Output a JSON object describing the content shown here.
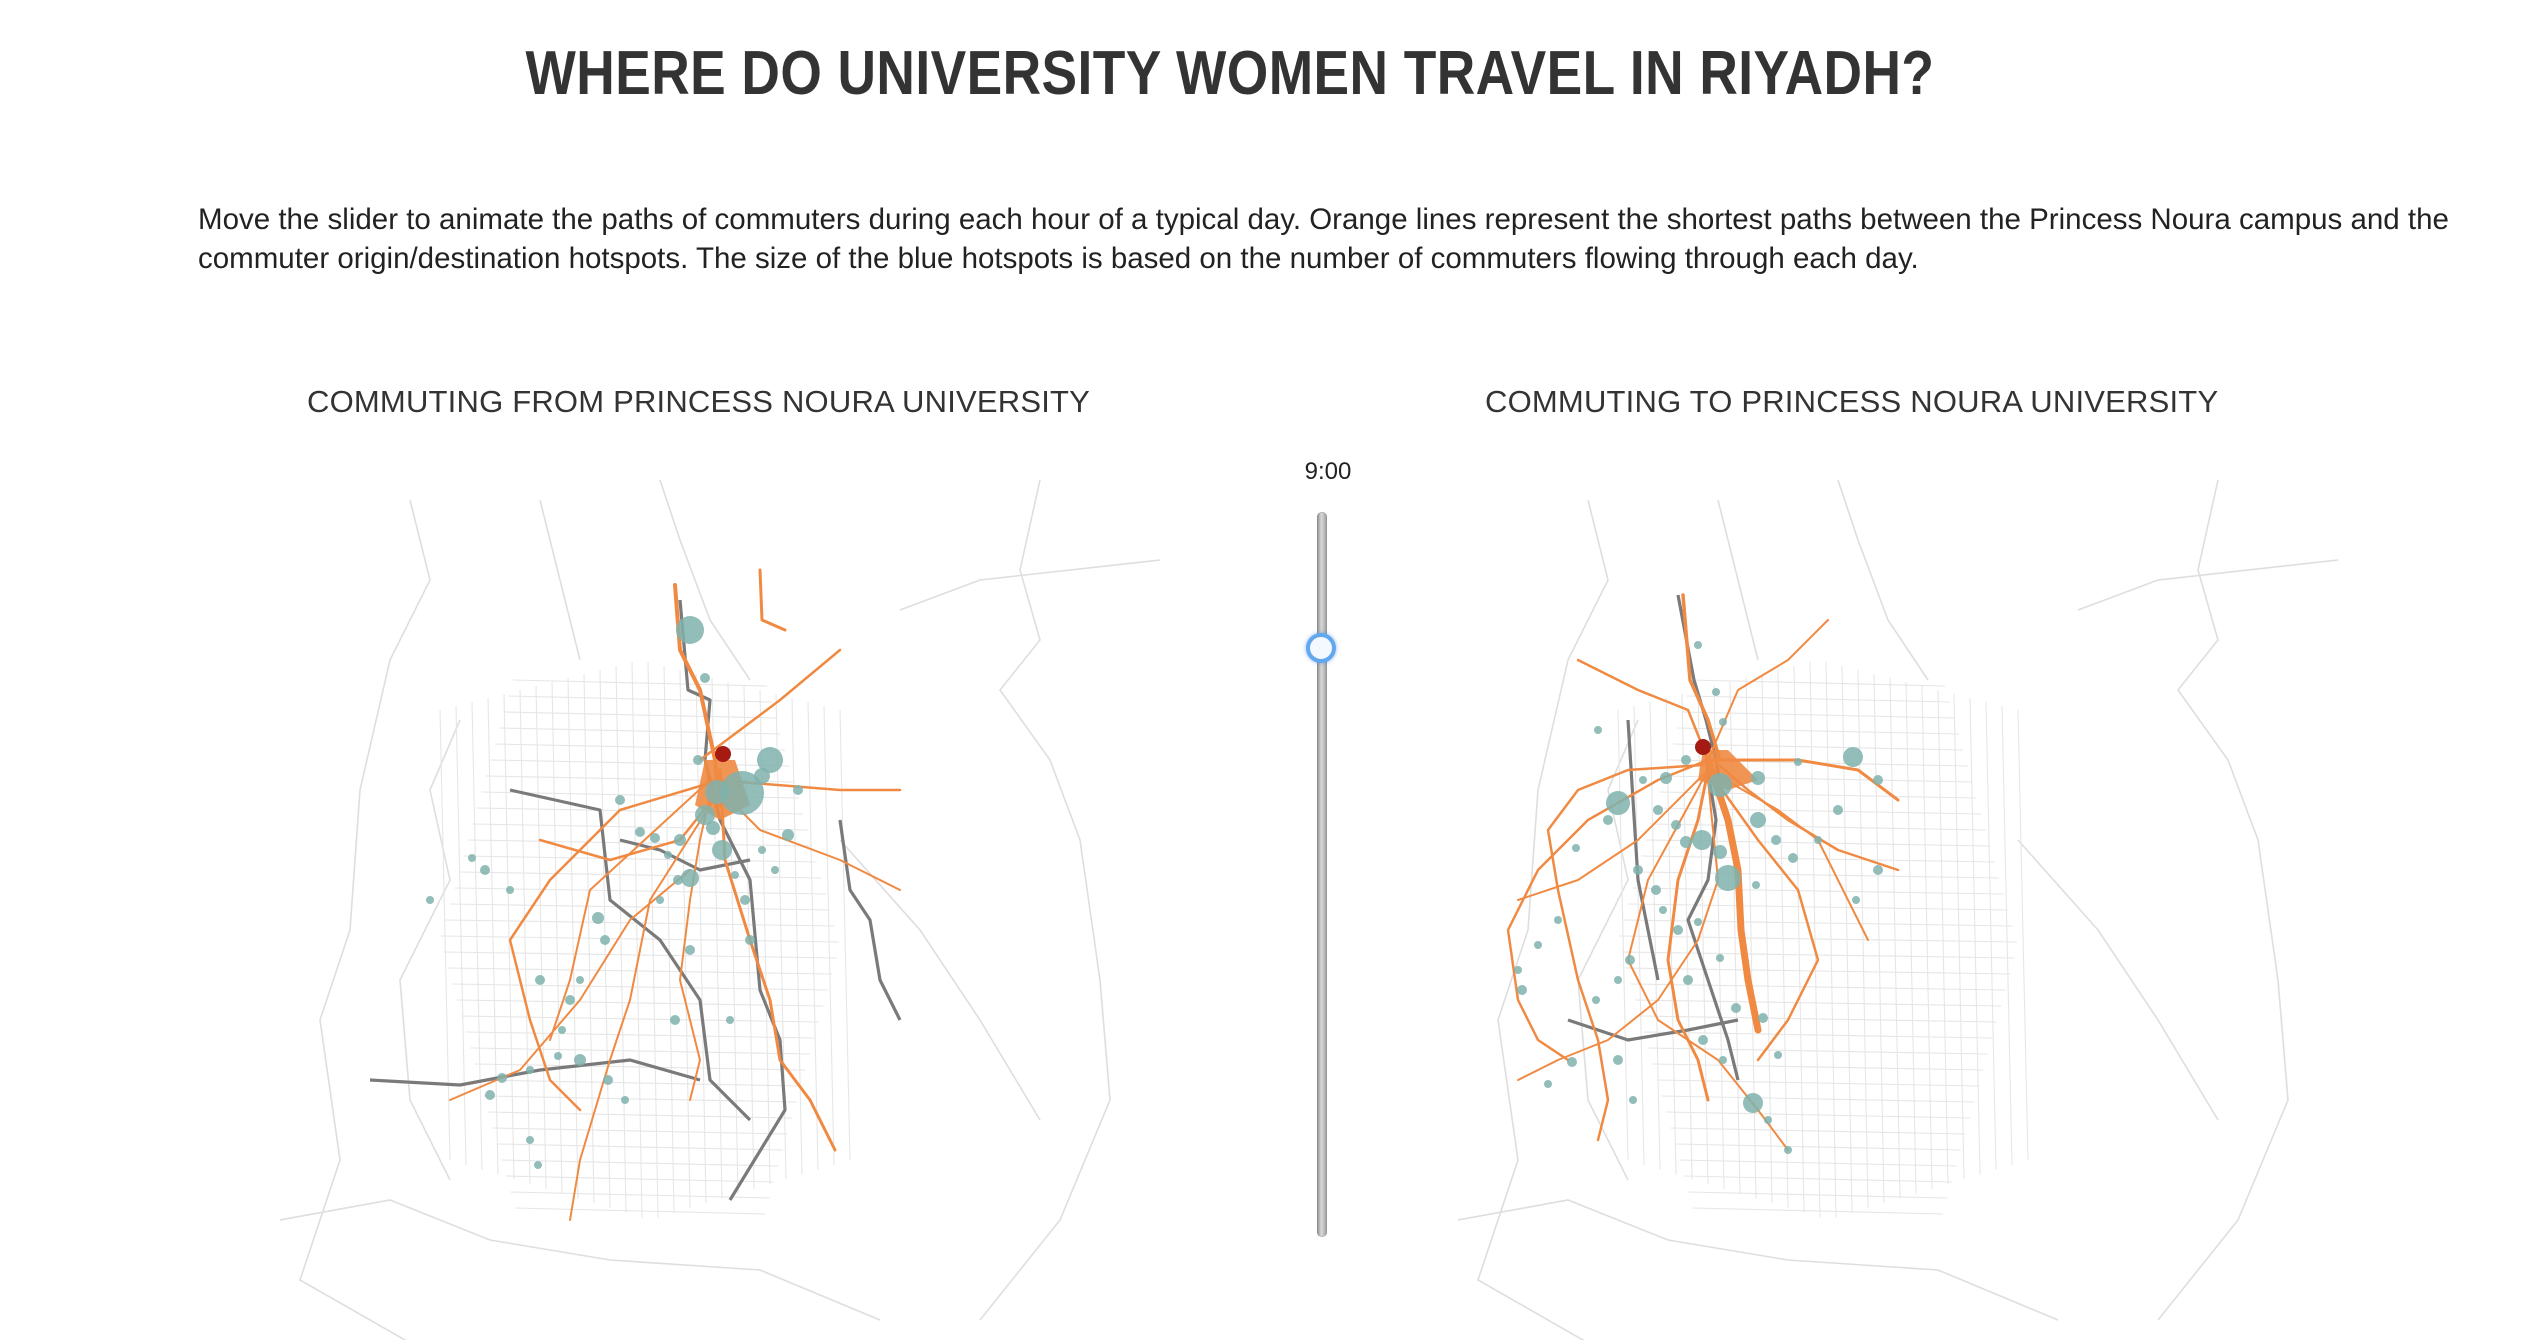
{
  "title": "WHERE DO UNIVERSITY WOMEN TRAVEL IN RIYADH?",
  "description": "Move the slider to animate the paths of commuters during each hour of a typical day. Orange lines represent the shortest paths between the Princess Noura campus and the commuter origin/destination hotspots. The size of the blue hotspots is based on the number of commuters flowing through each day.",
  "maps": {
    "from": {
      "title": "COMMUTING FROM PRINCESS NOURA UNIVERSITY"
    },
    "to": {
      "title": "COMMUTING TO PRINCESS NOURA UNIVERSITY"
    }
  },
  "slider": {
    "time_label": "9:00",
    "hour": 9,
    "range": [
      0,
      23
    ],
    "orientation": "vertical"
  },
  "colors": {
    "paths": "#f08a43",
    "hotspots": "#7fb2ad",
    "campus": "#a51a12",
    "roads": "#dedede",
    "metro": "#7a7a7a",
    "slider_handle": "#62a8ef"
  }
}
